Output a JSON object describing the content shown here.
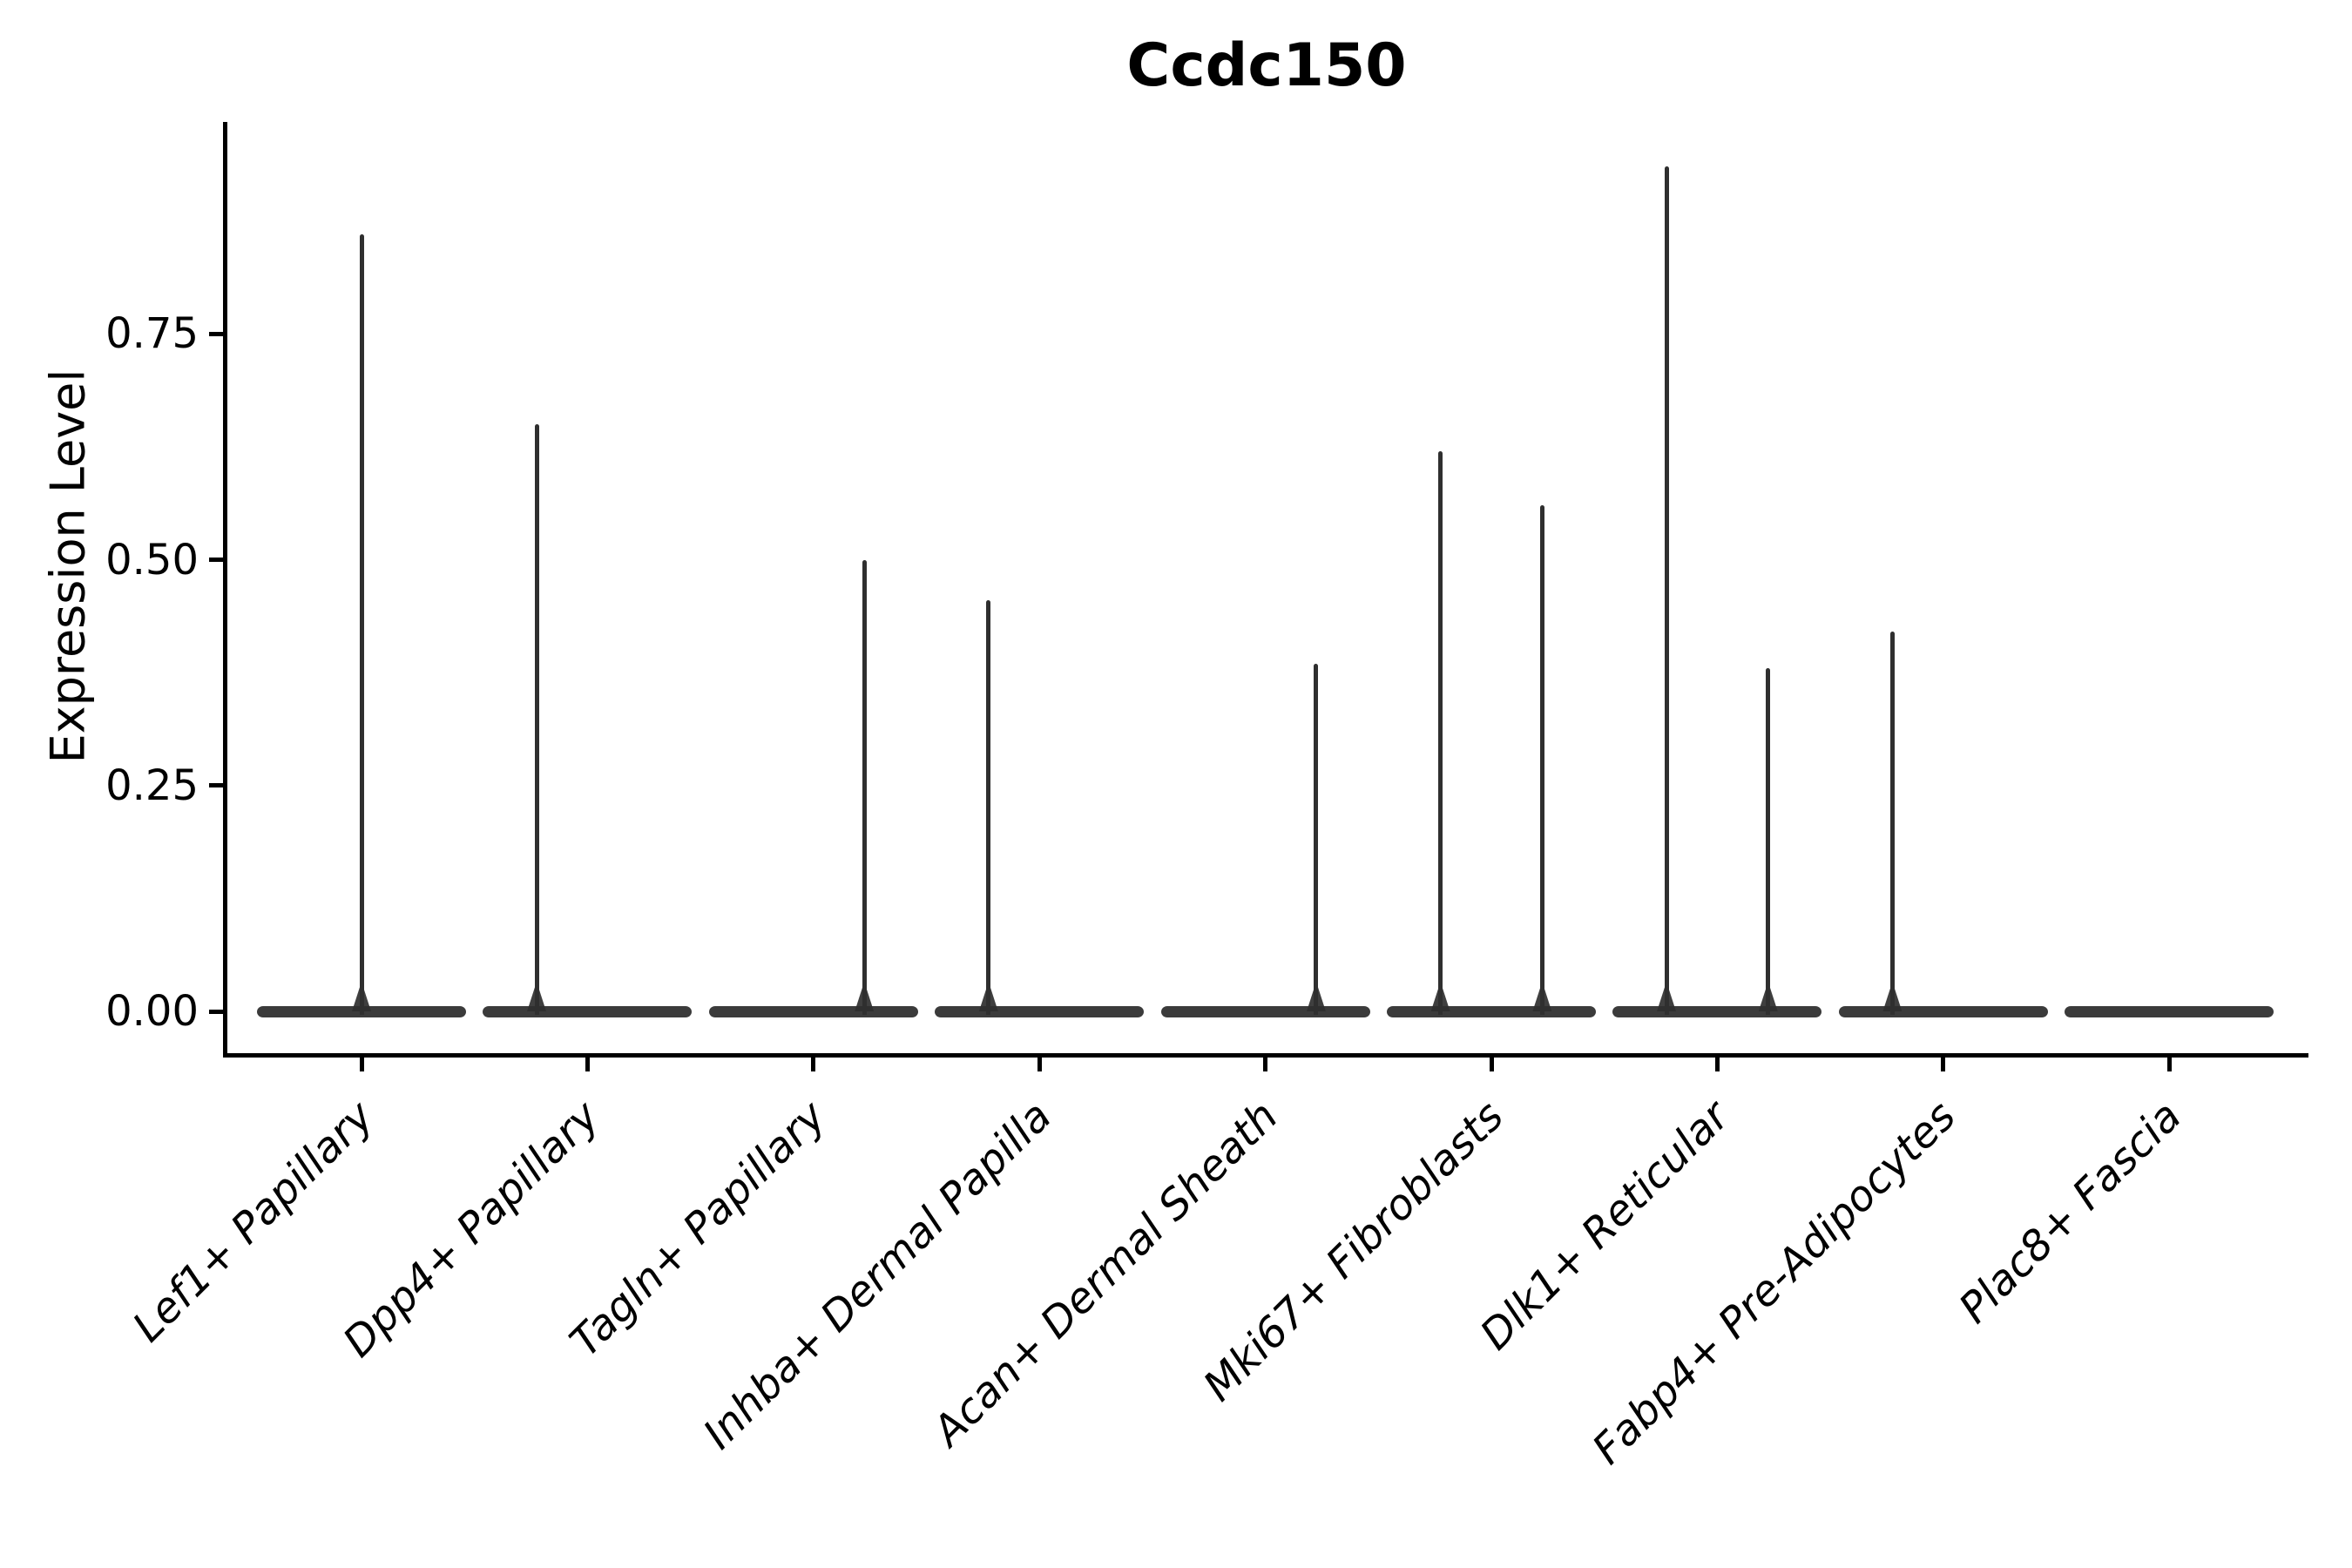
{
  "title": "Ccdc150",
  "ylabel": "Expression Level",
  "chart_data": {
    "type": "violin",
    "title": "Ccdc150",
    "xlabel": "",
    "ylabel": "Expression Level",
    "ylim": [
      0,
      0.985
    ],
    "grid": false,
    "legend": "none",
    "ytick_labels": [
      "0.00",
      "0.25",
      "0.50",
      "0.75"
    ],
    "ytick_values": [
      0,
      0.25,
      0.5,
      0.75
    ],
    "categories": [
      "Lef1+ Papillary",
      "Dpp4+ Papillary",
      "Tagln+ Papillary",
      "Inhba+ Dermal Papilla",
      "Acan+ Dermal Sheath",
      "Mki67+ Fibroblasts",
      "Dlk1+ Reticular",
      "Fabp4+ Pre-Adipocytes",
      "Plac8+ Fascia"
    ],
    "series": [
      {
        "category": "Lef1+ Papillary",
        "baseline_value": 0,
        "spikes": [
          {
            "offset": 0.0,
            "max": 0.86
          }
        ]
      },
      {
        "category": "Dpp4+ Papillary",
        "baseline_value": 0,
        "spikes": [
          {
            "offset": -0.225,
            "max": 0.65
          }
        ]
      },
      {
        "category": "Tagln+ Papillary",
        "baseline_value": 0,
        "spikes": [
          {
            "offset": 0.225,
            "max": 0.5
          }
        ]
      },
      {
        "category": "Inhba+ Dermal Papilla",
        "baseline_value": 0,
        "spikes": [
          {
            "offset": -0.225,
            "max": 0.455
          }
        ]
      },
      {
        "category": "Acan+ Dermal Sheath",
        "baseline_value": 0,
        "spikes": [
          {
            "offset": 0.225,
            "max": 0.385
          }
        ]
      },
      {
        "category": "Mki67+ Fibroblasts",
        "baseline_value": 0,
        "spikes": [
          {
            "offset": -0.225,
            "max": 0.62
          },
          {
            "offset": 0.225,
            "max": 0.56
          }
        ]
      },
      {
        "category": "Dlk1+ Reticular",
        "baseline_value": 0,
        "spikes": [
          {
            "offset": -0.225,
            "max": 0.935
          },
          {
            "offset": 0.225,
            "max": 0.38
          }
        ]
      },
      {
        "category": "Fabp4+ Pre-Adipocytes",
        "baseline_value": 0,
        "spikes": [
          {
            "offset": -0.225,
            "max": 0.42
          }
        ]
      },
      {
        "category": "Plac8+ Fascia",
        "baseline_value": 0,
        "spikes": []
      }
    ],
    "colors": {
      "violin_outline": "#2f2f2f",
      "violin_base": "#3b3b3b",
      "axis": "#000000",
      "text": "#000000"
    }
  }
}
